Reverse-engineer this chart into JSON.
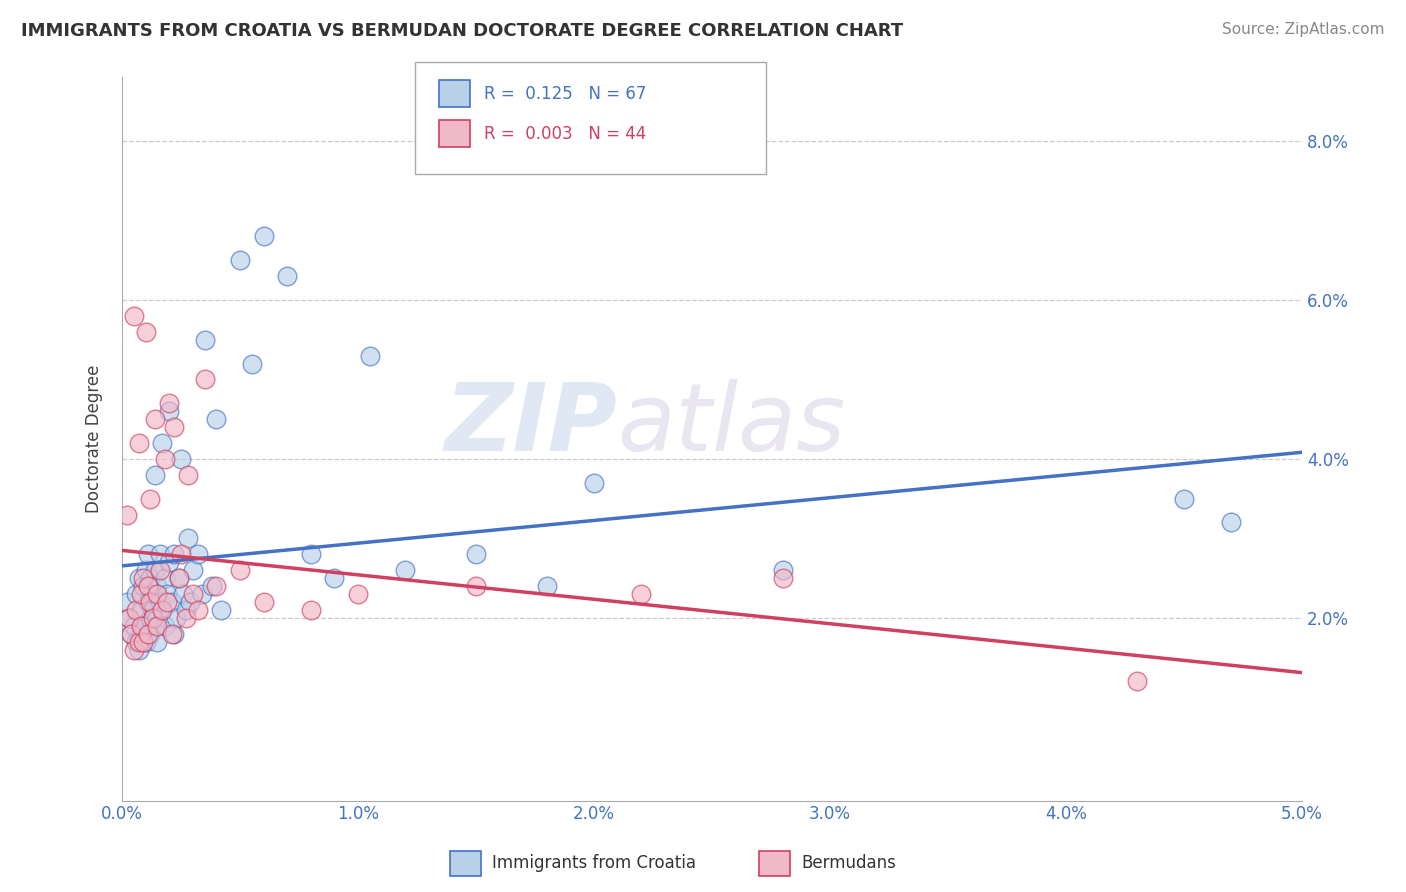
{
  "title": "IMMIGRANTS FROM CROATIA VS BERMUDAN DOCTORATE DEGREE CORRELATION CHART",
  "source": "Source: ZipAtlas.com",
  "ylabel": "Doctorate Degree",
  "xlim": [
    0.0,
    5.0
  ],
  "ylim": [
    -0.3,
    8.8
  ],
  "legend1_label": "R =  0.125   N = 67",
  "legend2_label": "R =  0.003   N = 44",
  "legend_color1": "#b8d0e8",
  "legend_color2": "#f0b8c8",
  "line1_color": "#4472C4",
  "line2_color": "#D04060",
  "watermark": "ZIPatlas",
  "ytick_vals": [
    2.0,
    4.0,
    6.0,
    8.0
  ],
  "xtick_vals": [
    0.0,
    1.0,
    2.0,
    3.0,
    4.0,
    5.0
  ],
  "blue_scatter_x": [
    0.02,
    0.03,
    0.04,
    0.05,
    0.06,
    0.06,
    0.07,
    0.07,
    0.08,
    0.08,
    0.09,
    0.09,
    0.1,
    0.1,
    0.11,
    0.11,
    0.12,
    0.12,
    0.12,
    0.13,
    0.13,
    0.14,
    0.14,
    0.14,
    0.15,
    0.15,
    0.15,
    0.16,
    0.16,
    0.17,
    0.17,
    0.18,
    0.18,
    0.19,
    0.2,
    0.2,
    0.21,
    0.22,
    0.22,
    0.23,
    0.24,
    0.25,
    0.26,
    0.27,
    0.28,
    0.29,
    0.3,
    0.32,
    0.34,
    0.35,
    0.38,
    0.4,
    0.42,
    0.5,
    0.55,
    0.6,
    0.7,
    0.8,
    0.9,
    1.05,
    1.2,
    1.5,
    1.8,
    2.0,
    2.8,
    4.5,
    4.7
  ],
  "blue_scatter_y": [
    2.2,
    2.0,
    1.8,
    1.9,
    2.3,
    1.7,
    2.5,
    1.6,
    2.1,
    1.8,
    2.4,
    1.9,
    2.6,
    1.7,
    2.2,
    2.8,
    2.0,
    2.5,
    1.8,
    2.3,
    2.1,
    3.8,
    2.6,
    1.9,
    2.0,
    2.4,
    1.7,
    2.8,
    2.2,
    2.1,
    4.2,
    2.5,
    1.9,
    2.3,
    2.7,
    4.6,
    2.2,
    2.8,
    1.8,
    2.0,
    2.5,
    4.0,
    2.3,
    2.1,
    3.0,
    2.2,
    2.6,
    2.8,
    2.3,
    5.5,
    2.4,
    4.5,
    2.1,
    6.5,
    5.2,
    6.8,
    6.3,
    2.8,
    2.5,
    5.3,
    2.6,
    2.8,
    2.4,
    3.7,
    2.6,
    3.5,
    3.2
  ],
  "pink_scatter_x": [
    0.02,
    0.03,
    0.04,
    0.05,
    0.05,
    0.06,
    0.07,
    0.07,
    0.08,
    0.08,
    0.09,
    0.09,
    0.1,
    0.11,
    0.11,
    0.12,
    0.12,
    0.13,
    0.14,
    0.15,
    0.15,
    0.16,
    0.17,
    0.18,
    0.19,
    0.2,
    0.21,
    0.22,
    0.24,
    0.25,
    0.27,
    0.28,
    0.3,
    0.32,
    0.35,
    0.4,
    0.5,
    0.6,
    0.8,
    1.0,
    1.5,
    2.2,
    2.8,
    4.3
  ],
  "pink_scatter_y": [
    3.3,
    2.0,
    1.8,
    5.8,
    1.6,
    2.1,
    4.2,
    1.7,
    2.3,
    1.9,
    2.5,
    1.7,
    5.6,
    2.4,
    1.8,
    2.2,
    3.5,
    2.0,
    4.5,
    2.3,
    1.9,
    2.6,
    2.1,
    4.0,
    2.2,
    4.7,
    1.8,
    4.4,
    2.5,
    2.8,
    2.0,
    3.8,
    2.3,
    2.1,
    5.0,
    2.4,
    2.6,
    2.2,
    2.1,
    2.3,
    2.4,
    2.3,
    2.5,
    1.2
  ]
}
